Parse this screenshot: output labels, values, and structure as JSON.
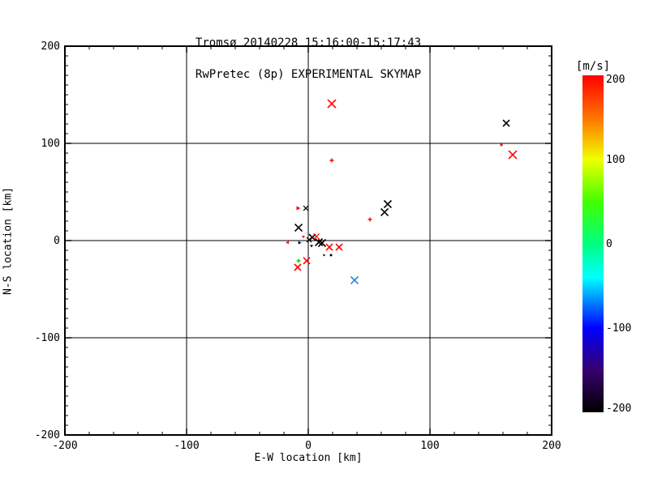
{
  "title": {
    "line1": "Tromsø 20140228 15:16:00-15:17:43",
    "line2": "RwPretec (8p) EXPERIMENTAL SKYMAP"
  },
  "colors": {
    "background": "#ffffff",
    "frame": "#000000",
    "marker_red": "#ff0000",
    "marker_black": "#000000",
    "marker_green": "#00cc00",
    "marker_blue": "#2e7fdd"
  },
  "chart_data": {
    "type": "scatter",
    "xlabel": "E-W location [km]",
    "ylabel": "N-S location [km]",
    "xlim": [
      -200,
      200
    ],
    "ylim": [
      -200,
      200
    ],
    "x_major_ticks": [
      -200,
      -100,
      0,
      100,
      200
    ],
    "y_major_ticks": [
      -200,
      -100,
      0,
      100,
      200
    ],
    "x_minor_step": 20,
    "y_minor_step": 10,
    "grid_lines": [
      -100,
      0,
      100
    ],
    "grid": true,
    "legend_position": "right-colorbar",
    "points": [
      {
        "x": 19.3,
        "y": 140.8,
        "color": "#ff0000",
        "shape": "x",
        "size": 5
      },
      {
        "x": 19.3,
        "y": 82.5,
        "color": "#ff0000",
        "shape": "plus",
        "size": 2.5
      },
      {
        "x": 162.7,
        "y": 120.8,
        "color": "#000000",
        "shape": "x",
        "size": 4
      },
      {
        "x": 158.7,
        "y": 98.3,
        "color": "#ff0000",
        "shape": "dot",
        "size": 1.5
      },
      {
        "x": 168.0,
        "y": 88.3,
        "color": "#ff0000",
        "shape": "x",
        "size": 5
      },
      {
        "x": 65.3,
        "y": 37.5,
        "color": "#000000",
        "shape": "x",
        "size": 4.5
      },
      {
        "x": 62.7,
        "y": 29.2,
        "color": "#000000",
        "shape": "x",
        "size": 4.5
      },
      {
        "x": 50.7,
        "y": 21.7,
        "color": "#ff0000",
        "shape": "plus",
        "size": 2.5
      },
      {
        "x": -8.0,
        "y": 33.3,
        "color": "#ff0000",
        "shape": "tri-right",
        "size": 2.5
      },
      {
        "x": -2.0,
        "y": 33.3,
        "color": "#000000",
        "shape": "x",
        "size": 3
      },
      {
        "x": -8.0,
        "y": 13.3,
        "color": "#000000",
        "shape": "x",
        "size": 4.5
      },
      {
        "x": -4.0,
        "y": 3.6,
        "color": "#ff0000",
        "shape": "tri-down",
        "size": 2
      },
      {
        "x": -17.3,
        "y": -2.0,
        "color": "#ff0000",
        "shape": "tri-left",
        "size": 2
      },
      {
        "x": -6.9,
        "y": -2.2,
        "color": "#000000",
        "shape": "tri-right",
        "size": 2
      },
      {
        "x": 0.7,
        "y": 0.8,
        "color": "#000000",
        "shape": "x",
        "size": 3
      },
      {
        "x": 3.3,
        "y": 3.3,
        "color": "#000000",
        "shape": "x",
        "size": 4
      },
      {
        "x": 6.7,
        "y": 4.2,
        "color": "#ff0000",
        "shape": "x",
        "size": 3.5
      },
      {
        "x": 8.7,
        "y": -1.7,
        "color": "#000000",
        "shape": "x",
        "size": 4.5
      },
      {
        "x": 11.3,
        "y": -2.5,
        "color": "#000000",
        "shape": "x",
        "size": 4.5
      },
      {
        "x": 2.7,
        "y": -5.8,
        "color": "#000000",
        "shape": "tri-down",
        "size": 2
      },
      {
        "x": 17.3,
        "y": -6.7,
        "color": "#ff0000",
        "shape": "x",
        "size": 4
      },
      {
        "x": 25.3,
        "y": -6.7,
        "color": "#ff0000",
        "shape": "x",
        "size": 4
      },
      {
        "x": 13.3,
        "y": -15.0,
        "color": "#000000",
        "shape": "tri-right",
        "size": 1.5
      },
      {
        "x": 18.7,
        "y": -15.0,
        "color": "#000000",
        "shape": "dot",
        "size": 1.5
      },
      {
        "x": -8.0,
        "y": -20.8,
        "color": "#00cc00",
        "shape": "plus",
        "size": 2.5
      },
      {
        "x": -1.3,
        "y": -20.8,
        "color": "#ff0000",
        "shape": "x",
        "size": 4
      },
      {
        "x": -8.7,
        "y": -27.5,
        "color": "#ff0000",
        "shape": "x",
        "size": 4
      },
      {
        "x": 38.0,
        "y": -40.8,
        "color": "#2e7fdd",
        "shape": "x",
        "size": 4.5
      }
    ],
    "colorbar": {
      "label": "[m/s]",
      "min": -200,
      "max": 200,
      "ticks": [
        200,
        100,
        0,
        -100,
        -200
      ],
      "stops": [
        {
          "v": 200,
          "c": "#ff0000"
        },
        {
          "v": 150,
          "c": "#ff7300"
        },
        {
          "v": 100,
          "c": "#f0ff00"
        },
        {
          "v": 50,
          "c": "#40ff00"
        },
        {
          "v": 0,
          "c": "#00ff80"
        },
        {
          "v": -40,
          "c": "#00ffff"
        },
        {
          "v": -100,
          "c": "#0000ff"
        },
        {
          "v": -150,
          "c": "#38006e"
        },
        {
          "v": -200,
          "c": "#000000"
        }
      ]
    }
  }
}
